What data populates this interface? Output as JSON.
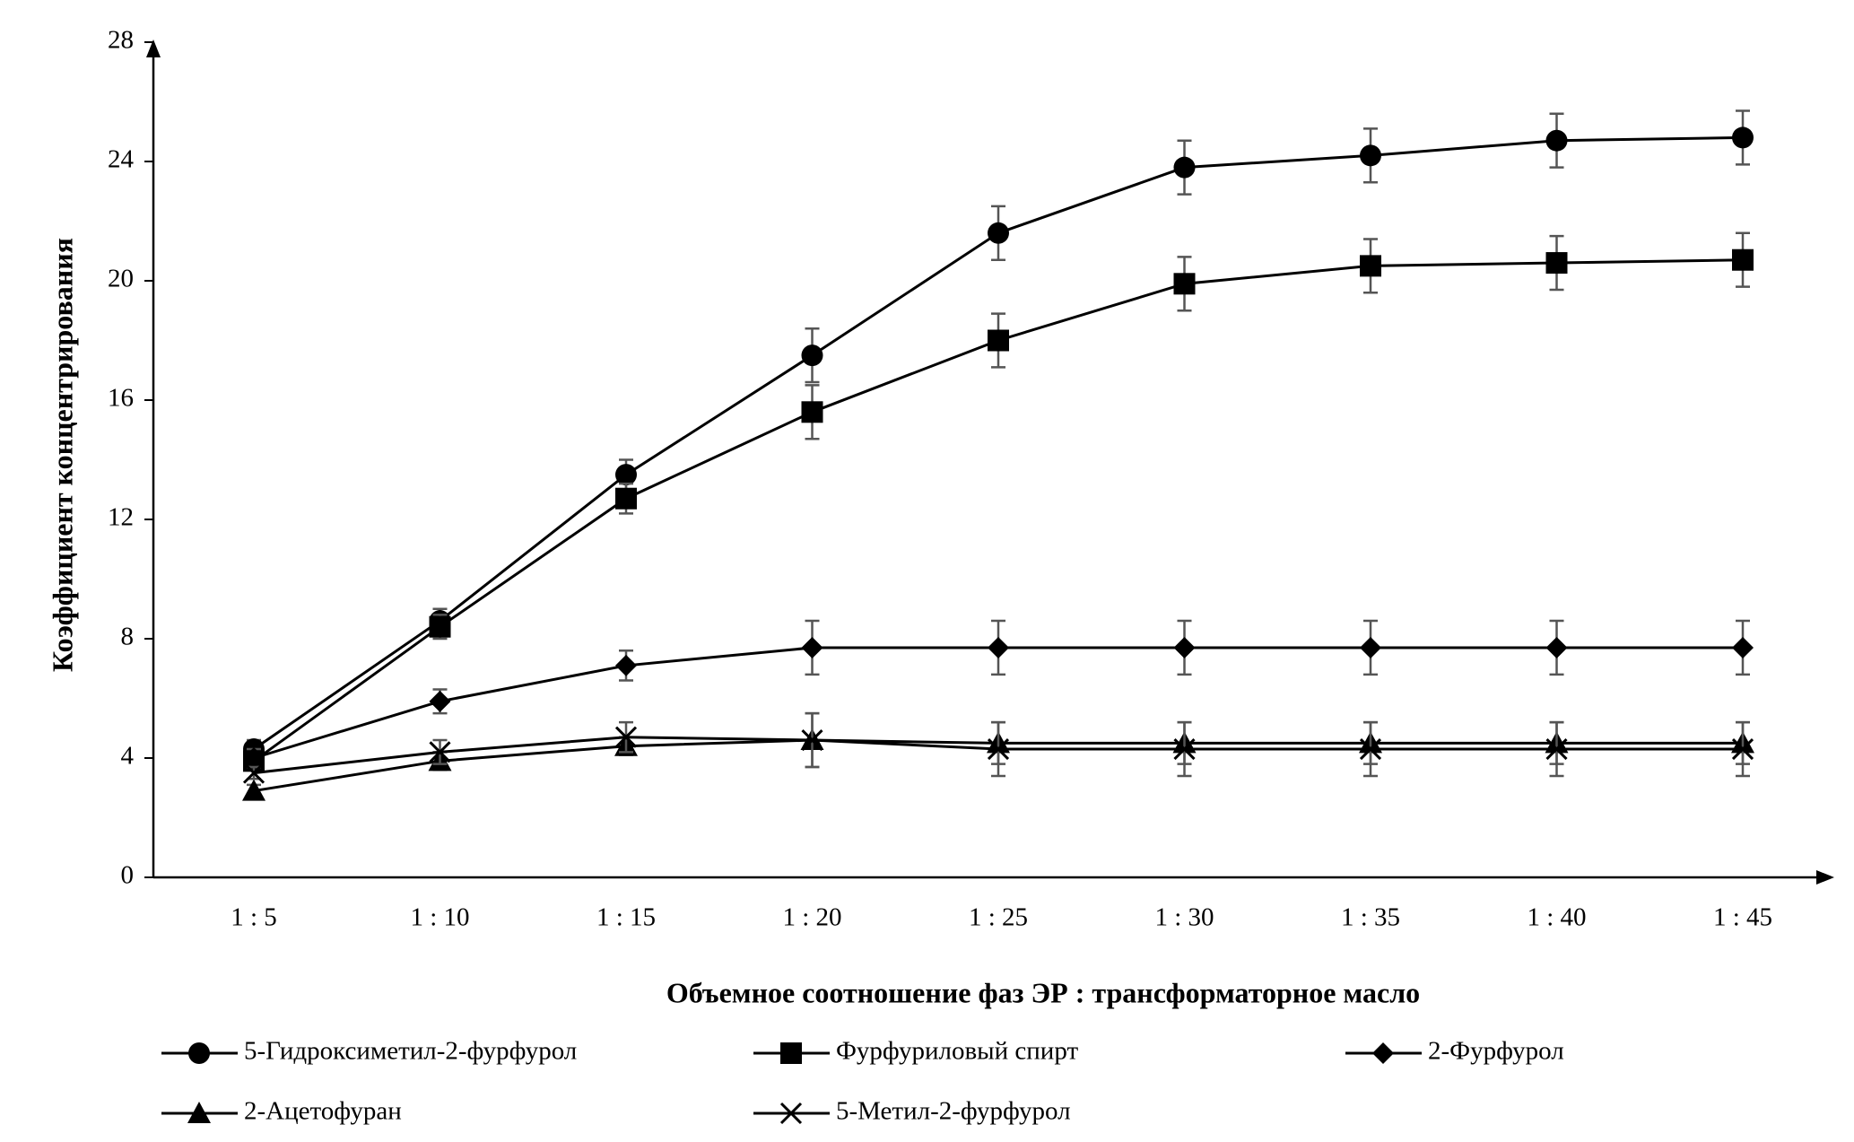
{
  "chart_data": {
    "type": "line",
    "x_label": "Объемное соотношение фаз ЭР : трансформаторное масло",
    "y_label": "Коэффициент концентрирования",
    "categories": [
      "1 : 5",
      "1 : 10",
      "1 : 15",
      "1 : 20",
      "1 : 25",
      "1 : 30",
      "1 : 35",
      "1 : 40",
      "1 : 45"
    ],
    "ylim": [
      0,
      28
    ],
    "yticks": [
      0,
      4,
      8,
      12,
      16,
      20,
      24,
      28
    ],
    "series": [
      {
        "name": "5-Гидроксиметил-2-фурфурол",
        "color": "#000000",
        "marker": "circle",
        "values": [
          4.3,
          8.6,
          13.5,
          17.5,
          21.6,
          23.8,
          24.2,
          24.7,
          24.8
        ],
        "errors": [
          0.3,
          0.4,
          0.5,
          0.9,
          0.9,
          0.9,
          0.9,
          0.9,
          0.9
        ]
      },
      {
        "name": "Фурфуриловый спирт",
        "color": "#000000",
        "marker": "square",
        "values": [
          3.9,
          8.4,
          12.7,
          15.6,
          18.0,
          19.9,
          20.5,
          20.6,
          20.7
        ],
        "errors": [
          0.3,
          0.4,
          0.5,
          0.9,
          0.9,
          0.9,
          0.9,
          0.9,
          0.9
        ]
      },
      {
        "name": "2-Фурфурол",
        "color": "#000000",
        "marker": "diamond",
        "values": [
          4.0,
          5.9,
          7.1,
          7.7,
          7.7,
          7.7,
          7.7,
          7.7,
          7.7
        ],
        "errors": [
          0.3,
          0.4,
          0.5,
          0.9,
          0.9,
          0.9,
          0.9,
          0.9,
          0.9
        ]
      },
      {
        "name": "2-Ацетофуран",
        "color": "#000000",
        "marker": "triangle",
        "values": [
          2.9,
          3.9,
          4.4,
          4.6,
          4.5,
          4.5,
          4.5,
          4.5,
          4.5
        ],
        "errors": [
          0.2,
          0.3,
          0.3,
          0.9,
          0.7,
          0.7,
          0.7,
          0.7,
          0.7
        ]
      },
      {
        "name": "5-Метил-2-фурфурол",
        "color": "#000000",
        "marker": "x",
        "values": [
          3.5,
          4.2,
          4.7,
          4.6,
          4.3,
          4.3,
          4.3,
          4.3,
          4.3
        ],
        "errors": [
          0.2,
          0.4,
          0.5,
          0.9,
          0.9,
          0.9,
          0.9,
          0.9,
          0.9
        ]
      }
    ]
  }
}
